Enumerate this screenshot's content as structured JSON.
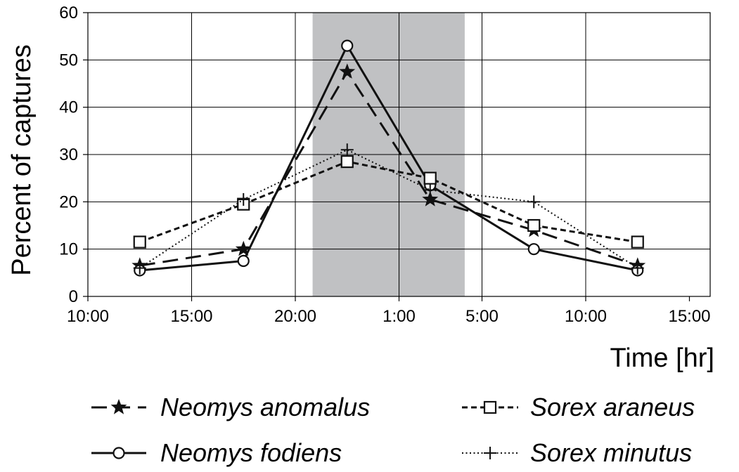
{
  "chart_data": {
    "type": "line",
    "title": "",
    "xlabel": "Time [hr]",
    "ylabel": "Percent of captures",
    "x_ticks": [
      "10:00",
      "15:00",
      "20:00",
      "1:00",
      "5:00",
      "10:00",
      "15:00"
    ],
    "y_ticks": [
      "0",
      "10",
      "20",
      "30",
      "40",
      "50",
      "60"
    ],
    "ylim": [
      0,
      60
    ],
    "grid": true,
    "night_band": {
      "from": "20:50",
      "to": "4:10",
      "color": "#c0c1c3"
    },
    "x": [
      "12:30",
      "17:30",
      "22:30",
      "2:30",
      "7:30",
      "12:30"
    ],
    "series": [
      {
        "name": "Neomys anomalus",
        "line": "long-dash",
        "marker": "star",
        "values": [
          6.5,
          10,
          47.5,
          20.5,
          14,
          6.5
        ]
      },
      {
        "name": "Neomys fodiens",
        "line": "solid",
        "marker": "circle",
        "values": [
          5.5,
          7.5,
          53,
          23.5,
          10,
          5.5
        ]
      },
      {
        "name": "Sorex araneus",
        "line": "short-dash",
        "marker": "square",
        "values": [
          11.5,
          19.5,
          28.5,
          25,
          15,
          11.5
        ]
      },
      {
        "name": "Sorex minutus",
        "line": "dotted",
        "marker": "plus",
        "values": [
          6,
          20.5,
          31,
          22.5,
          20,
          6
        ]
      }
    ],
    "legend_position": "bottom"
  }
}
